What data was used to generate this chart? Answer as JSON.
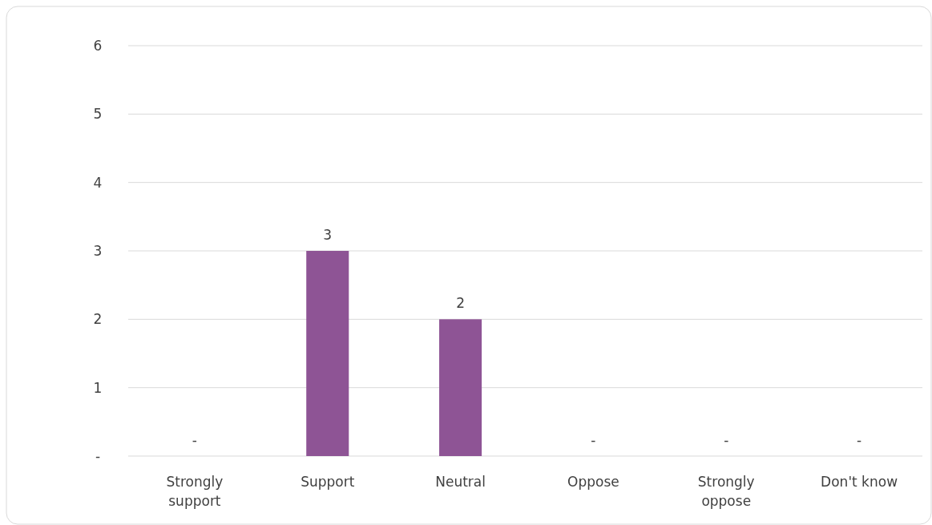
{
  "chart_data": {
    "type": "bar",
    "categories": [
      "Strongly support",
      "Support",
      "Neutral",
      "Oppose",
      "Strongly oppose",
      "Don't know"
    ],
    "values": [
      0,
      3,
      2,
      0,
      0,
      0
    ],
    "value_labels": [
      "-",
      "3",
      "2",
      "-",
      "-",
      "-"
    ],
    "color": "#8e5495",
    "ylim": [
      0,
      6
    ],
    "yticks": [
      {
        "value": 0,
        "label": "-"
      },
      1,
      2,
      3,
      4,
      5,
      6
    ],
    "grid": "y"
  }
}
